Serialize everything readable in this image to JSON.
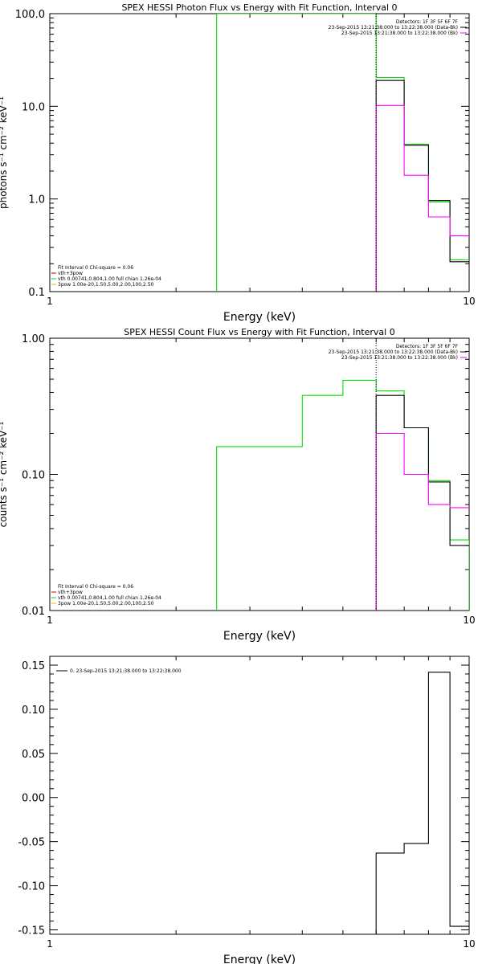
{
  "colors": {
    "black": "#000000",
    "magenta": "#ff00ff",
    "green": "#00e000",
    "red": "#cc0000",
    "yellow": "#e6b800"
  },
  "chart_data": [
    {
      "type": "line",
      "title": "SPEX HESSI Photon Flux vs Energy with Fit Function, Interval 0",
      "xlabel": "Energy (keV)",
      "ylabel": "photons s⁻¹ cm⁻² keV⁻¹",
      "xscale": "log",
      "yscale": "log",
      "xlim": [
        1,
        10
      ],
      "ylim": [
        0.1,
        100
      ],
      "xticks": [
        {
          "v": 1,
          "label": "1"
        },
        {
          "v": 10,
          "label": "10"
        }
      ],
      "yticks": [
        {
          "v": 0.1,
          "label": "0.1"
        },
        {
          "v": 1,
          "label": "1.0"
        },
        {
          "v": 10,
          "label": "10.0"
        },
        {
          "v": 100,
          "label": "100.0"
        }
      ],
      "legend_tr": [
        {
          "text": "Detectors: 1F 3F 5F 6F 7F",
          "color": "black"
        },
        {
          "text": "23-Sep-2015 13:21:38.000 to 13:22:38.000 (Data-Bk)",
          "color": "black"
        },
        {
          "text": "23-Sep-2015 13:21:38.000 to 13:22:38.000 (Bk)",
          "color": "magenta"
        }
      ],
      "legend_bl": [
        {
          "text": "Fit Interval 0   Chi-square = 0.06",
          "color": "black"
        },
        {
          "text": "vth+3pow",
          "color": "red"
        },
        {
          "text": "vth 0.00741,0.804,1.00  full chian 1.26e-04",
          "color": "green"
        },
        {
          "text": "3pow 1.00e-20,1.50,5.00,2.00,100,2.50",
          "color": "yellow"
        }
      ],
      "vline_x": 6.0,
      "series": [
        {
          "color": "green",
          "x": [
            2.5,
            2.5,
            5.0,
            5.0,
            6.0,
            6.0,
            7.0,
            7.0,
            8.0,
            8.0,
            9.0,
            9.0,
            10.0
          ],
          "y": [
            0.1,
            100,
            100,
            100,
            100,
            20.5,
            20.5,
            3.9,
            3.9,
            0.93,
            0.93,
            0.22,
            0.22
          ]
        },
        {
          "color": "black",
          "x": [
            6.0,
            6.0,
            7.0,
            7.0,
            8.0,
            8.0,
            9.0,
            9.0,
            10.0
          ],
          "y": [
            0.1,
            19,
            19,
            3.8,
            3.8,
            0.96,
            0.96,
            0.21,
            0.21
          ]
        },
        {
          "color": "magenta",
          "x": [
            6.0,
            6.0,
            7.0,
            7.0,
            8.0,
            8.0,
            9.0,
            9.0,
            10.0
          ],
          "y": [
            0.1,
            10.2,
            10.2,
            1.8,
            1.8,
            0.64,
            0.64,
            0.4,
            0.4
          ]
        }
      ]
    },
    {
      "type": "line",
      "title": "SPEX HESSI Count Flux vs Energy with Fit Function, Interval 0",
      "xlabel": "Energy (keV)",
      "ylabel": "counts s⁻¹ cm⁻² keV⁻¹",
      "xscale": "log",
      "yscale": "log",
      "xlim": [
        1,
        10
      ],
      "ylim": [
        0.01,
        1
      ],
      "xticks": [
        {
          "v": 1,
          "label": "1"
        },
        {
          "v": 10,
          "label": "10"
        }
      ],
      "yticks": [
        {
          "v": 0.01,
          "label": "0.01"
        },
        {
          "v": 0.1,
          "label": "0.10"
        },
        {
          "v": 1,
          "label": "1.00"
        }
      ],
      "legend_tr": [
        {
          "text": "Detectors: 1F 3F 5F 6F 7F",
          "color": "black"
        },
        {
          "text": "23-Sep-2015 13:21:38.000 to 13:22:38.000 (Data-Bk)",
          "color": "black"
        },
        {
          "text": "23-Sep-2015 13:21:38.000 to 13:22:38.000 (Bk)",
          "color": "magenta"
        }
      ],
      "legend_bl": [
        {
          "text": "Fit Interval 0   Chi-square = 0.06",
          "color": "black"
        },
        {
          "text": "vth+3pow",
          "color": "red"
        },
        {
          "text": "vth 0.00741,0.804,1.00  full chian 1.26e-04",
          "color": "green"
        },
        {
          "text": "3pow 1.00e-20,1.50,5.00,2.00,100,2.50",
          "color": "yellow"
        }
      ],
      "vline_x": 6.0,
      "series": [
        {
          "color": "green",
          "x": [
            2.5,
            2.5,
            4.0,
            4.0,
            5.0,
            5.0,
            6.0,
            6.0,
            7.0,
            7.0,
            8.0,
            8.0,
            9.0,
            9.0,
            10.0,
            10.0
          ],
          "y": [
            0.01,
            0.16,
            0.16,
            0.38,
            0.38,
            0.49,
            0.49,
            0.41,
            0.41,
            0.22,
            0.22,
            0.09,
            0.09,
            0.033,
            0.033,
            0.01
          ]
        },
        {
          "color": "black",
          "x": [
            6.0,
            6.0,
            7.0,
            7.0,
            8.0,
            8.0,
            9.0,
            9.0,
            10.0
          ],
          "y": [
            0.01,
            0.38,
            0.38,
            0.22,
            0.22,
            0.088,
            0.088,
            0.03,
            0.03
          ]
        },
        {
          "color": "magenta",
          "x": [
            6.0,
            6.0,
            7.0,
            7.0,
            8.0,
            8.0,
            9.0,
            9.0,
            10.0
          ],
          "y": [
            0.01,
            0.2,
            0.2,
            0.1,
            0.1,
            0.06,
            0.06,
            0.057,
            0.057
          ]
        }
      ]
    },
    {
      "type": "line",
      "title": "",
      "xlabel": "Energy (keV)",
      "ylabel": "",
      "xscale": "log",
      "yscale": "linear",
      "xlim": [
        1,
        10
      ],
      "ylim": [
        -0.155,
        0.16
      ],
      "xticks": [
        {
          "v": 1,
          "label": "1"
        },
        {
          "v": 10,
          "label": "10"
        }
      ],
      "yticks": [
        {
          "v": -0.15,
          "label": "-0.15"
        },
        {
          "v": -0.1,
          "label": "-0.10"
        },
        {
          "v": -0.05,
          "label": "-0.05"
        },
        {
          "v": 0,
          "label": "0.00"
        },
        {
          "v": 0.05,
          "label": "0.05"
        },
        {
          "v": 0.1,
          "label": "0.10"
        },
        {
          "v": 0.15,
          "label": "0.15"
        }
      ],
      "legend_tr": [],
      "legend_bl": [],
      "legend_tl": [
        {
          "text": "0. 23-Sep-2015 13:21:38.000 to 13:22:38.000",
          "color": "black"
        }
      ],
      "vline_x": null,
      "series": [
        {
          "color": "black",
          "x": [
            6.0,
            6.0,
            7.0,
            7.0,
            8.0,
            8.0,
            9.0,
            9.0,
            10.0
          ],
          "y": [
            -0.155,
            -0.063,
            -0.063,
            -0.052,
            -0.052,
            0.142,
            0.142,
            -0.146,
            -0.146
          ]
        }
      ]
    }
  ]
}
